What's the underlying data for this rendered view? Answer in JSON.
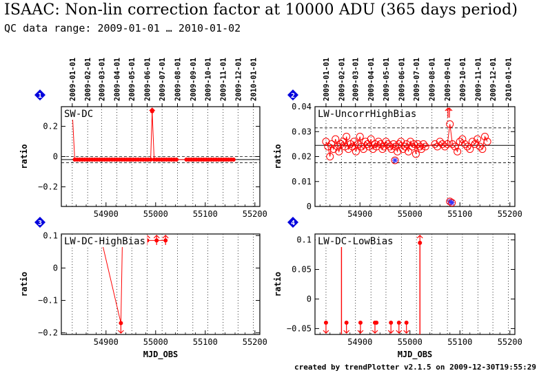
{
  "header": {
    "title": "ISAAC: Non-lin correction factor at 10000 ADU (365 days period)",
    "subtitle": "QC data range: 2009-01-01 … 2010-01-02"
  },
  "footer": "created by trendPlotter v2.1.5 on 2009-12-30T19:55:29",
  "colors": {
    "data": "#ff0000",
    "marker_alt": "#3333ff",
    "badge": "#0000dd",
    "axis": "#000000",
    "ref": "#000000"
  },
  "date_ticks": [
    "2009-01-01",
    "2009-02-01",
    "2009-03-01",
    "2009-04-01",
    "2009-05-01",
    "2009-06-01",
    "2009-07-01",
    "2009-08-01",
    "2009-09-01",
    "2009-10-01",
    "2009-11-01",
    "2009-12-01",
    "2010-01-01"
  ],
  "date_tick_mjd": [
    54832,
    54863,
    54891,
    54922,
    54952,
    54983,
    55013,
    55044,
    55075,
    55105,
    55136,
    55166,
    55197
  ],
  "chart_data": [
    {
      "type": "scatter",
      "badge": "1",
      "label": "SW-DC",
      "xlabel": "",
      "ylabel": "ratio",
      "xlim": [
        54810,
        55210
      ],
      "ylim": [
        -0.33,
        0.33
      ],
      "xticks": [
        54900,
        55000,
        55100,
        55200
      ],
      "yticks": [
        -0.2,
        0,
        0.2
      ],
      "ytick_labels": [
        "−0.2",
        "0",
        "0.2"
      ],
      "ref_line": -0.02,
      "band": [
        -0.04,
        0.0
      ],
      "grid": true,
      "marker": "circle-small",
      "connect": true,
      "x": [
        54832,
        54837,
        54842,
        54847,
        54852,
        54857,
        54862,
        54867,
        54872,
        54877,
        54882,
        54887,
        54892,
        54897,
        54902,
        54907,
        54912,
        54917,
        54922,
        54927,
        54932,
        54937,
        54942,
        54947,
        54950,
        54955,
        54960,
        54965,
        54970,
        54975,
        54980,
        54985,
        54990,
        54993,
        54997,
        55002,
        55007,
        55012,
        55017,
        55022,
        55027,
        55032,
        55037,
        55042,
        55062,
        55067,
        55072,
        55077,
        55082,
        55087,
        55092,
        55097,
        55102,
        55107,
        55112,
        55117,
        55122,
        55127,
        55132,
        55137,
        55142,
        55147,
        55152,
        55157
      ],
      "y": [
        0.3,
        -0.02,
        -0.02,
        -0.02,
        -0.02,
        -0.02,
        -0.02,
        -0.02,
        -0.02,
        -0.02,
        -0.02,
        -0.02,
        -0.02,
        -0.02,
        -0.02,
        -0.02,
        -0.02,
        -0.02,
        -0.02,
        -0.02,
        -0.02,
        -0.02,
        -0.02,
        -0.02,
        -0.02,
        -0.02,
        -0.02,
        -0.02,
        -0.02,
        -0.02,
        -0.02,
        -0.02,
        -0.02,
        0.3,
        -0.02,
        -0.02,
        -0.02,
        -0.02,
        -0.02,
        -0.02,
        -0.02,
        -0.02,
        -0.02,
        -0.02,
        -0.02,
        -0.02,
        -0.02,
        -0.02,
        -0.02,
        -0.02,
        -0.02,
        -0.02,
        -0.02,
        -0.02,
        -0.02,
        -0.02,
        -0.02,
        -0.02,
        -0.02,
        -0.02,
        -0.02,
        -0.02,
        -0.02,
        -0.02
      ],
      "arrows_up": [
        54832,
        54993
      ]
    },
    {
      "type": "scatter",
      "badge": "2",
      "label": "LW-UncorrHighBias",
      "xlabel": "",
      "ylabel": "ratio",
      "xlim": [
        54810,
        55210
      ],
      "ylim": [
        0,
        0.04
      ],
      "xticks": [
        54900,
        55000,
        55100,
        55200
      ],
      "yticks": [
        0,
        0.01,
        0.02,
        0.03,
        0.04
      ],
      "ytick_labels": [
        "0",
        "0.01",
        "0.02",
        "0.03",
        "0.04"
      ],
      "ref_line": 0.0245,
      "band": [
        0.0175,
        0.0315
      ],
      "grid": true,
      "marker": "circle-open",
      "connect": true,
      "x": [
        54832,
        54836,
        54840,
        54843,
        54847,
        54851,
        54855,
        54858,
        54862,
        54866,
        54870,
        54873,
        54877,
        54881,
        54885,
        54888,
        54892,
        54896,
        54900,
        54903,
        54907,
        54911,
        54915,
        54918,
        54922,
        54926,
        54930,
        54933,
        54937,
        54941,
        54945,
        54948,
        54952,
        54956,
        54960,
        54963,
        54967,
        54971,
        54975,
        54978,
        54982,
        54986,
        54990,
        54993,
        54997,
        55001,
        55005,
        55008,
        55012,
        55016,
        55020,
        55023,
        55027,
        55031,
        55050,
        55055,
        55060,
        55065,
        55070,
        55075,
        55080,
        55085,
        55090,
        55095,
        55100,
        55105,
        55110,
        55115,
        55120,
        55125,
        55130,
        55135,
        55140,
        55145,
        55150,
        55155
      ],
      "y": [
        0.026,
        0.024,
        0.02,
        0.025,
        0.023,
        0.027,
        0.024,
        0.022,
        0.025,
        0.026,
        0.024,
        0.028,
        0.023,
        0.025,
        0.024,
        0.026,
        0.022,
        0.025,
        0.028,
        0.024,
        0.023,
        0.026,
        0.025,
        0.024,
        0.027,
        0.023,
        0.025,
        0.024,
        0.026,
        0.025,
        0.023,
        0.024,
        0.026,
        0.025,
        0.024,
        0.023,
        0.025,
        0.024,
        0.022,
        0.025,
        0.026,
        0.023,
        0.024,
        0.025,
        0.022,
        0.026,
        0.024,
        0.025,
        0.021,
        0.025,
        0.024,
        0.023,
        0.025,
        0.024,
        0.025,
        0.024,
        0.026,
        0.025,
        0.024,
        0.025,
        0.033,
        0.025,
        0.024,
        0.022,
        0.026,
        0.027,
        0.025,
        0.024,
        0.023,
        0.026,
        0.025,
        0.027,
        0.024,
        0.023,
        0.028,
        0.026
      ],
      "special_x": [
        54970,
        55080,
        55084
      ],
      "special_y": [
        0.0185,
        0.002,
        0.0015
      ],
      "arrows_up": [
        55076,
        55079
      ]
    },
    {
      "type": "scatter",
      "badge": "3",
      "label": "LW-DC-HighBias",
      "xlabel": "MJD_OBS",
      "ylabel": "ratio",
      "xlim": [
        54810,
        55210
      ],
      "ylim": [
        -0.205,
        0.105
      ],
      "xticks": [
        54900,
        55000,
        55100,
        55200
      ],
      "yticks": [
        -0.2,
        -0.1,
        0,
        0.1
      ],
      "ytick_labels": [
        "−0.2",
        "−0.1",
        "0",
        "0.1"
      ],
      "ref_line": null,
      "band": null,
      "grid": true,
      "marker": "circle-small",
      "connect": true,
      "x": [
        54832,
        54863,
        54873,
        54891,
        54930,
        54933,
        54983,
        55002,
        55020
      ],
      "y": [
        0.085,
        0.085,
        0.085,
        0.085,
        -0.17,
        0.085,
        0.085,
        0.085,
        0.085
      ],
      "arrows_up": [
        54832,
        54863,
        54873,
        54891,
        54933,
        54983,
        55002,
        55020
      ],
      "arrows_down": [
        54930
      ]
    },
    {
      "type": "scatter",
      "badge": "4",
      "label": "LW-DC-LowBias",
      "xlabel": "MJD_OBS",
      "ylabel": "ratio",
      "xlim": [
        54810,
        55210
      ],
      "ylim": [
        -0.06,
        0.11
      ],
      "xticks": [
        54900,
        55000,
        55100,
        55200
      ],
      "yticks": [
        -0.05,
        0,
        0.05,
        0.1
      ],
      "ytick_labels": [
        "−0.05",
        "0",
        "0.05",
        "0.1"
      ],
      "ref_line": null,
      "band": null,
      "grid": true,
      "marker": "circle-small",
      "connect": false,
      "x": [
        54832,
        54863,
        54873,
        54901,
        54930,
        54933,
        54962,
        54978,
        54993,
        55020
      ],
      "y": [
        -0.04,
        0.095,
        -0.04,
        -0.04,
        -0.04,
        -0.04,
        -0.04,
        -0.04,
        -0.04,
        0.095
      ],
      "arrows_up": [
        54863,
        55020
      ],
      "arrows_down": [
        54832,
        54873,
        54901,
        54930,
        54962,
        54978,
        54993
      ],
      "stems": [
        [
          54863,
          -0.06,
          0.095
        ],
        [
          55020,
          -0.06,
          0.095
        ]
      ]
    }
  ]
}
